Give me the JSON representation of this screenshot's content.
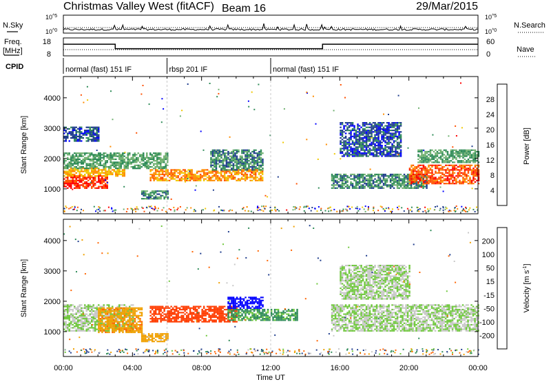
{
  "header": {
    "radar": "Christmas Valley West (fitACF)",
    "beam": "Beam 16",
    "date": "29/Mar/2015"
  },
  "meta_panels": {
    "nsky_label": "N.Sky",
    "nsearch_label": "N.Search",
    "freq_label_line1": "Freq.",
    "freq_label_line2": "[MHz]",
    "nave_label": "Nave",
    "cpid_label": "CPID",
    "nsky_ticks": [
      {
        "mant": "10",
        "exp": "^5"
      },
      {
        "mant": "10",
        "exp": "^0"
      }
    ],
    "nsearch_ticks": [
      {
        "mant": "10",
        "exp": "^5"
      },
      {
        "mant": "10",
        "exp": "^0"
      }
    ],
    "freq_ticks": [
      "18",
      "8"
    ],
    "nave_ticks": [
      "60",
      "0"
    ],
    "freq_steps": [
      {
        "from": 0,
        "to": 3,
        "value": 14.5
      },
      {
        "from": 3,
        "to": 15,
        "value": 12.0
      },
      {
        "from": 15,
        "to": 24,
        "value": 14.5
      }
    ],
    "cpid_segments": [
      {
        "from": 0,
        "to": 6,
        "label": "normal (fast) 151 IF"
      },
      {
        "from": 6,
        "to": 12,
        "label": "rbsp 201 IF"
      },
      {
        "from": 12,
        "to": 24,
        "label": "normal (fast) 151 IF"
      }
    ]
  },
  "chart_data": [
    {
      "type": "heatmap",
      "title": "",
      "xlabel": "",
      "ylabel": "Slant Range [km]",
      "xlim": [
        0,
        24
      ],
      "ylim": [
        180,
        4700
      ],
      "x_ticks": [
        "00:00",
        "04:00",
        "08:00",
        "12:00",
        "16:00",
        "20:00",
        "00:00"
      ],
      "y_ticks": [
        1000,
        2000,
        3000,
        4000
      ],
      "colorbar": {
        "label": "Power [dB]",
        "tick_labels": [
          "4",
          "8",
          "12",
          "16",
          "20",
          "24",
          "28"
        ],
        "colors": [
          "#0000ff",
          "#1e3c8c",
          "#2e8b57",
          "#6fb06f",
          "#f0c800",
          "#ff8c00",
          "#ff5000",
          "#ff0000"
        ]
      },
      "echo_regions": [
        {
          "t": [
            0.0,
            2.5
          ],
          "r": [
            1050,
            1450
          ],
          "level": 28
        },
        {
          "t": [
            0.0,
            3.5
          ],
          "r": [
            1450,
            1700
          ],
          "level": 20
        },
        {
          "t": [
            0.0,
            6.0
          ],
          "r": [
            1700,
            2200
          ],
          "level": 12
        },
        {
          "t": [
            0.0,
            2.0
          ],
          "r": [
            2600,
            3050
          ],
          "level": 6
        },
        {
          "t": [
            5.0,
            11.5
          ],
          "r": [
            1300,
            1650
          ],
          "level": 22
        },
        {
          "t": [
            8.5,
            11.5
          ],
          "r": [
            1650,
            2300
          ],
          "level": 10
        },
        {
          "t": [
            4.5,
            6.0
          ],
          "r": [
            700,
            950
          ],
          "level": 10
        },
        {
          "t": [
            15.5,
            21.0
          ],
          "r": [
            1050,
            1500
          ],
          "level": 10
        },
        {
          "t": [
            16.0,
            19.5
          ],
          "r": [
            2100,
            3200
          ],
          "level": 6
        },
        {
          "t": [
            20.0,
            24.0
          ],
          "r": [
            1200,
            1800
          ],
          "level": 26
        },
        {
          "t": [
            20.5,
            24.0
          ],
          "r": [
            1900,
            2300
          ],
          "level": 12
        }
      ]
    },
    {
      "type": "heatmap",
      "title": "",
      "xlabel": "Time UT",
      "ylabel": "Slant Range [km]",
      "xlim": [
        0,
        24
      ],
      "ylim": [
        180,
        4700
      ],
      "x_ticks": [
        "00:00",
        "04:00",
        "08:00",
        "12:00",
        "16:00",
        "20:00",
        "00:00"
      ],
      "y_ticks": [
        1000,
        2000,
        3000,
        4000
      ],
      "colorbar": {
        "label": "Velocity [m s^-1]",
        "tick_labels": [
          "200",
          "100",
          "50",
          "15",
          "-15",
          "-50",
          "-100",
          "-200"
        ],
        "colors": [
          "#0000ff",
          "#1e3c8c",
          "#2e8b57",
          "#6fc83c",
          "#c8c8c8",
          "#f0a000",
          "#ff6400",
          "#ff3c00",
          "#ff0000"
        ]
      },
      "echo_regions": [
        {
          "t": [
            0.0,
            4.0
          ],
          "r": [
            1050,
            1900
          ],
          "level": 0
        },
        {
          "t": [
            2.0,
            4.5
          ],
          "r": [
            1000,
            1800
          ],
          "level": -60
        },
        {
          "t": [
            5.0,
            10.0
          ],
          "r": [
            1350,
            1850
          ],
          "level": -200
        },
        {
          "t": [
            9.5,
            13.5
          ],
          "r": [
            1400,
            1750
          ],
          "level": 40
        },
        {
          "t": [
            9.5,
            11.5
          ],
          "r": [
            1800,
            2150
          ],
          "level": 200
        },
        {
          "t": [
            4.5,
            6.0
          ],
          "r": [
            700,
            950
          ],
          "level": -50
        },
        {
          "t": [
            15.5,
            24.0
          ],
          "r": [
            1050,
            1900
          ],
          "level": 0
        },
        {
          "t": [
            16.0,
            20.0
          ],
          "r": [
            2100,
            3200
          ],
          "level": 0
        }
      ]
    }
  ]
}
